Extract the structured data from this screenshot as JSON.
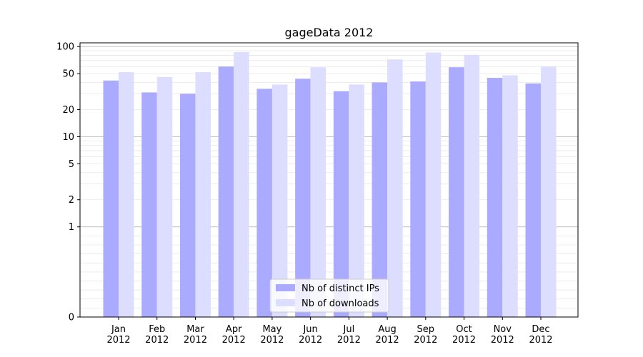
{
  "chart_data": {
    "type": "bar",
    "title": "gageData 2012",
    "xlabel": "",
    "ylabel": "",
    "yscale": "symlog",
    "ylim": [
      0,
      110
    ],
    "y_ticks": [
      {
        "value": 0,
        "label": "0"
      },
      {
        "value": 1,
        "label": "1"
      },
      {
        "value": 2,
        "label": "2"
      },
      {
        "value": 5,
        "label": "5"
      },
      {
        "value": 10,
        "label": "10"
      },
      {
        "value": 20,
        "label": "20"
      },
      {
        "value": 50,
        "label": "50"
      },
      {
        "value": 100,
        "label": "100"
      }
    ],
    "categories": [
      [
        "Jan",
        "2012"
      ],
      [
        "Feb",
        "2012"
      ],
      [
        "Mar",
        "2012"
      ],
      [
        "Apr",
        "2012"
      ],
      [
        "May",
        "2012"
      ],
      [
        "Jun",
        "2012"
      ],
      [
        "Jul",
        "2012"
      ],
      [
        "Aug",
        "2012"
      ],
      [
        "Sep",
        "2012"
      ],
      [
        "Oct",
        "2012"
      ],
      [
        "Nov",
        "2012"
      ],
      [
        "Dec",
        "2012"
      ]
    ],
    "series": [
      {
        "name": "Nb of distinct IPs",
        "color": "#aaaaff",
        "values": [
          42,
          31,
          30,
          60,
          34,
          44,
          32,
          40,
          41,
          59,
          45,
          39
        ]
      },
      {
        "name": "Nb of downloads",
        "color": "#ddddff",
        "values": [
          52,
          46,
          52,
          87,
          38,
          59,
          38,
          72,
          86,
          81,
          48,
          60
        ]
      }
    ],
    "grid": {
      "major_color": "#b0b0b0",
      "minor_color": "#e6e6e6"
    },
    "legend": {
      "placement": "bottom-center"
    }
  }
}
